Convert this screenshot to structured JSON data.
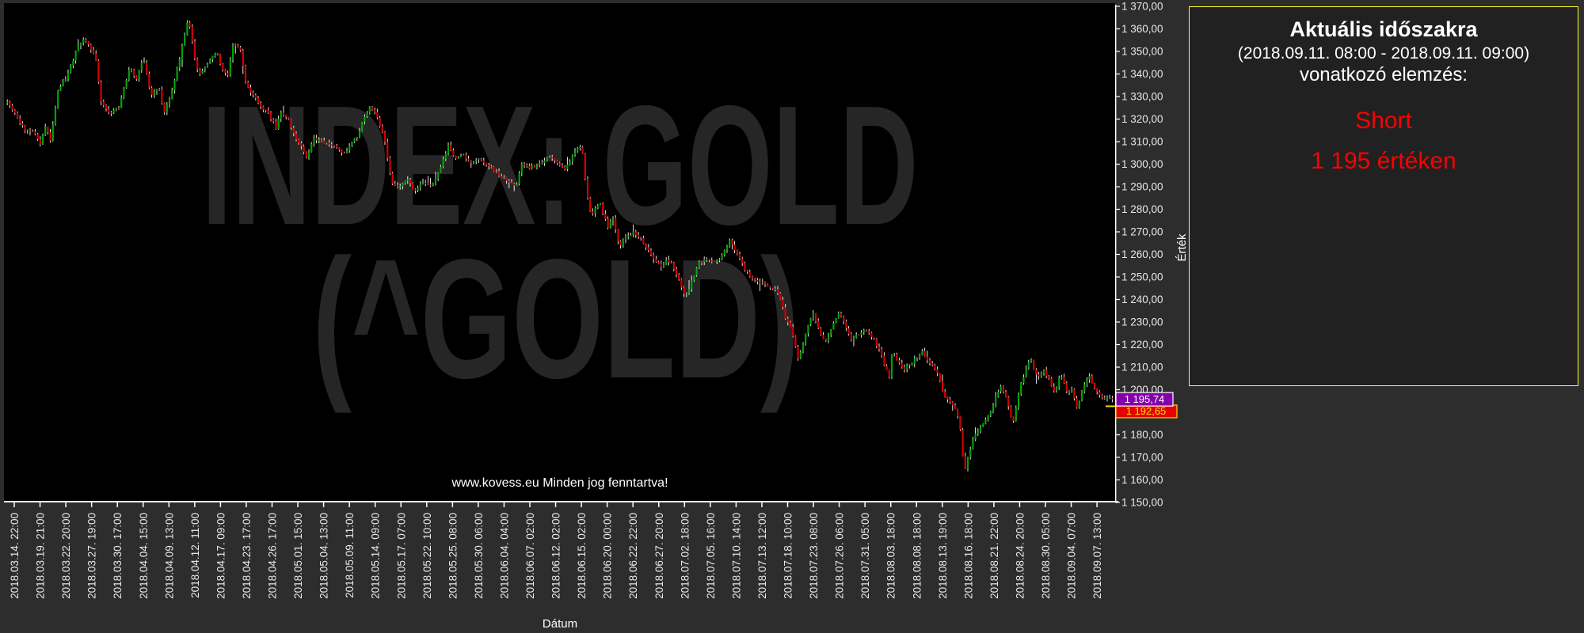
{
  "page": {
    "background": "#2d2d2d"
  },
  "watermark": {
    "line1": "INDEX: GOLD",
    "line2": "(^GOLD)",
    "color": "#262626"
  },
  "footer": {
    "text": "www.kovess.eu Minden jog fenntartva!"
  },
  "analysis_panel": {
    "title": "Aktuális időszakra",
    "period": "(2018.09.11. 08:00 - 2018.09.11. 09:00)",
    "subtitle": "vonatkozó elemzés:",
    "signal": "Short",
    "price_text": "1 195 értéken",
    "signal_color": "#ff0000",
    "border_color": "#ffff33"
  },
  "chart_data": {
    "type": "candlestick",
    "title": "",
    "xlabel": "Dátum",
    "ylabel": "Érték",
    "x_labels": [
      "2018.03.14. 22:00",
      "2018.03.19. 21:00",
      "2018.03.22. 20:00",
      "2018.03.27. 19:00",
      "2018.03.30. 17:00",
      "2018.04.04. 15:00",
      "2018.04.09. 13:00",
      "2018.04.12. 11:00",
      "2018.04.17. 09:00",
      "2018.04.23. 17:00",
      "2018.04.26. 17:00",
      "2018.05.01. 15:00",
      "2018.05.04. 13:00",
      "2018.05.09. 11:00",
      "2018.05.14. 09:00",
      "2018.05.17. 07:00",
      "2018.05.22. 10:00",
      "2018.05.25. 08:00",
      "2018.05.30. 06:00",
      "2018.06.04. 04:00",
      "2018.06.07. 02:00",
      "2018.06.12. 02:00",
      "2018.06.15. 02:00",
      "2018.06.20. 00:00",
      "2018.06.22. 22:00",
      "2018.06.27. 20:00",
      "2018.07.02. 18:00",
      "2018.07.05. 16:00",
      "2018.07.10. 14:00",
      "2018.07.13. 12:00",
      "2018.07.18. 10:00",
      "2018.07.23. 08:00",
      "2018.07.26. 06:00",
      "2018.07.31. 05:00",
      "2018.08.03. 18:00",
      "2018.08.08. 18:00",
      "2018.08.13. 19:00",
      "2018.08.16. 18:00",
      "2018.08.21. 22:00",
      "2018.08.24. 20:00",
      "2018.08.30. 05:00",
      "2018.09.04. 07:00",
      "2018.09.07. 13:00"
    ],
    "y_axis": {
      "min": 1150,
      "max": 1370,
      "step": 10
    },
    "candle_count": 437,
    "price_anchors": [
      [
        0.0,
        1327
      ],
      [
        0.007,
        1322
      ],
      [
        0.016,
        1315
      ],
      [
        0.025,
        1314
      ],
      [
        0.03,
        1308
      ],
      [
        0.034,
        1318
      ],
      [
        0.039,
        1310
      ],
      [
        0.046,
        1333
      ],
      [
        0.055,
        1340
      ],
      [
        0.062,
        1350
      ],
      [
        0.069,
        1356
      ],
      [
        0.074,
        1353
      ],
      [
        0.08,
        1347
      ],
      [
        0.085,
        1327
      ],
      [
        0.093,
        1323
      ],
      [
        0.101,
        1325
      ],
      [
        0.111,
        1343
      ],
      [
        0.117,
        1337
      ],
      [
        0.123,
        1348
      ],
      [
        0.13,
        1330
      ],
      [
        0.137,
        1334
      ],
      [
        0.142,
        1323
      ],
      [
        0.148,
        1330
      ],
      [
        0.155,
        1345
      ],
      [
        0.164,
        1365
      ],
      [
        0.168,
        1352
      ],
      [
        0.173,
        1339
      ],
      [
        0.179,
        1343
      ],
      [
        0.184,
        1347
      ],
      [
        0.189,
        1350
      ],
      [
        0.194,
        1343
      ],
      [
        0.199,
        1338
      ],
      [
        0.204,
        1353
      ],
      [
        0.211,
        1351
      ],
      [
        0.216,
        1336
      ],
      [
        0.223,
        1330
      ],
      [
        0.23,
        1325
      ],
      [
        0.237,
        1322
      ],
      [
        0.243,
        1316
      ],
      [
        0.248,
        1323
      ],
      [
        0.254,
        1320
      ],
      [
        0.26,
        1312
      ],
      [
        0.266,
        1308
      ],
      [
        0.271,
        1303
      ],
      [
        0.277,
        1312
      ],
      [
        0.284,
        1310
      ],
      [
        0.294,
        1308
      ],
      [
        0.305,
        1305
      ],
      [
        0.316,
        1312
      ],
      [
        0.328,
        1326
      ],
      [
        0.334,
        1322
      ],
      [
        0.341,
        1312
      ],
      [
        0.348,
        1292
      ],
      [
        0.355,
        1290
      ],
      [
        0.362,
        1293
      ],
      [
        0.369,
        1288
      ],
      [
        0.376,
        1292
      ],
      [
        0.384,
        1290
      ],
      [
        0.391,
        1297
      ],
      [
        0.399,
        1308
      ],
      [
        0.405,
        1303
      ],
      [
        0.412,
        1305
      ],
      [
        0.419,
        1300
      ],
      [
        0.426,
        1303
      ],
      [
        0.434,
        1300
      ],
      [
        0.441,
        1297
      ],
      [
        0.448,
        1294
      ],
      [
        0.455,
        1292
      ],
      [
        0.46,
        1290
      ],
      [
        0.466,
        1300
      ],
      [
        0.473,
        1298
      ],
      [
        0.48,
        1300
      ],
      [
        0.487,
        1302
      ],
      [
        0.492,
        1304
      ],
      [
        0.498,
        1300
      ],
      [
        0.504,
        1298
      ],
      [
        0.51,
        1302
      ],
      [
        0.517,
        1308
      ],
      [
        0.521,
        1305
      ],
      [
        0.524,
        1288
      ],
      [
        0.528,
        1277
      ],
      [
        0.532,
        1280
      ],
      [
        0.536,
        1284
      ],
      [
        0.54,
        1277
      ],
      [
        0.544,
        1272
      ],
      [
        0.548,
        1277
      ],
      [
        0.554,
        1263
      ],
      [
        0.559,
        1267
      ],
      [
        0.566,
        1270
      ],
      [
        0.573,
        1267
      ],
      [
        0.578,
        1263
      ],
      [
        0.584,
        1259
      ],
      [
        0.592,
        1254
      ],
      [
        0.596,
        1258
      ],
      [
        0.601,
        1256
      ],
      [
        0.607,
        1250
      ],
      [
        0.614,
        1241
      ],
      [
        0.619,
        1248
      ],
      [
        0.626,
        1257
      ],
      [
        0.634,
        1258
      ],
      [
        0.641,
        1256
      ],
      [
        0.648,
        1260
      ],
      [
        0.653,
        1266
      ],
      [
        0.659,
        1262
      ],
      [
        0.669,
        1252
      ],
      [
        0.676,
        1248
      ],
      [
        0.684,
        1248
      ],
      [
        0.691,
        1245
      ],
      [
        0.698,
        1243
      ],
      [
        0.704,
        1232
      ],
      [
        0.709,
        1228
      ],
      [
        0.716,
        1213
      ],
      [
        0.721,
        1222
      ],
      [
        0.729,
        1235
      ],
      [
        0.735,
        1225
      ],
      [
        0.741,
        1222
      ],
      [
        0.748,
        1230
      ],
      [
        0.753,
        1235
      ],
      [
        0.759,
        1227
      ],
      [
        0.764,
        1222
      ],
      [
        0.769,
        1224
      ],
      [
        0.776,
        1227
      ],
      [
        0.784,
        1223
      ],
      [
        0.791,
        1215
      ],
      [
        0.798,
        1205
      ],
      [
        0.801,
        1218
      ],
      [
        0.806,
        1212
      ],
      [
        0.812,
        1209
      ],
      [
        0.819,
        1212
      ],
      [
        0.828,
        1217
      ],
      [
        0.834,
        1212
      ],
      [
        0.841,
        1208
      ],
      [
        0.846,
        1200
      ],
      [
        0.851,
        1195
      ],
      [
        0.857,
        1193
      ],
      [
        0.862,
        1185
      ],
      [
        0.866,
        1163
      ],
      [
        0.87,
        1172
      ],
      [
        0.874,
        1178
      ],
      [
        0.88,
        1183
      ],
      [
        0.887,
        1188
      ],
      [
        0.893,
        1194
      ],
      [
        0.899,
        1202
      ],
      [
        0.905,
        1195
      ],
      [
        0.91,
        1185
      ],
      [
        0.916,
        1200
      ],
      [
        0.921,
        1208
      ],
      [
        0.926,
        1214
      ],
      [
        0.932,
        1205
      ],
      [
        0.937,
        1209
      ],
      [
        0.943,
        1204
      ],
      [
        0.948,
        1198
      ],
      [
        0.953,
        1208
      ],
      [
        0.959,
        1199
      ],
      [
        0.964,
        1200
      ],
      [
        0.968,
        1192
      ],
      [
        0.973,
        1200
      ],
      [
        0.979,
        1207
      ],
      [
        0.984,
        1200
      ],
      [
        0.991,
        1196
      ],
      [
        0.996,
        1197
      ],
      [
        1.0,
        1195.74
      ]
    ],
    "colors": {
      "up": "#00a400",
      "down": "#d40000",
      "wick": "#ffffff",
      "background": "#000000",
      "axis": "#ffffff",
      "label": "#e8e8e8"
    },
    "markers": [
      {
        "label": "1 195,74",
        "value": 1195.74,
        "bg": "#8400aa",
        "text_color": "#ffffff",
        "border_color": "#ffffff"
      },
      {
        "label": "1 192,65",
        "value": 1192.65,
        "bg": "#e60000",
        "text_color": "#ffe000",
        "border_color": "#ffd800"
      }
    ],
    "last_price": 1195.74
  }
}
